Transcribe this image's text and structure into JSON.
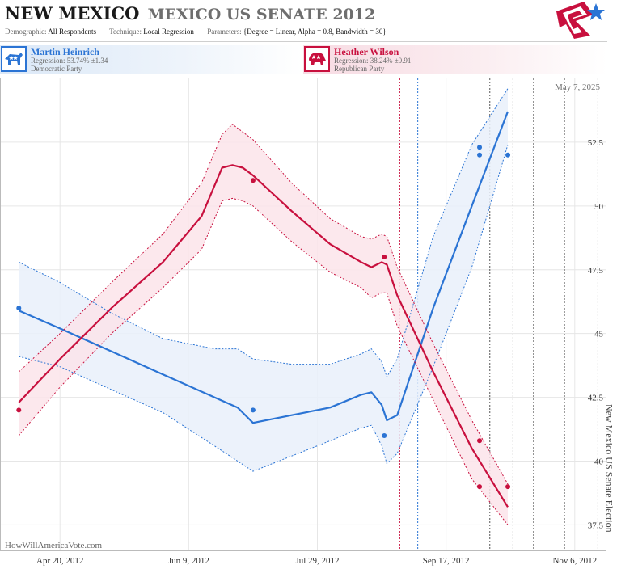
{
  "header": {
    "state": "NEW MEXICO",
    "race": "MEXICO US SENATE 2012",
    "demographic_key": "Demographic:",
    "demographic_val": "All Respondents",
    "technique_key": "Technique:",
    "technique_val": "Local Regression",
    "params_key": "Parameters:",
    "params_val": "{Degree = Linear, Alpha = 0.8, Bandwidth = 30}"
  },
  "candidates": {
    "dem": {
      "name": "Martin Heinrich",
      "regression": "Regression: 53.74% ±1.34",
      "party": "Democratic Party"
    },
    "rep": {
      "name": "Heather Wilson",
      "regression": "Regression: 38.24% ±0.91",
      "party": "Republican Party"
    }
  },
  "colors": {
    "dem": "#2b74d4",
    "rep": "#c8103e",
    "dem_band": "#e9f0fa",
    "rep_band": "#fbe4ea",
    "grid": "#e6e6e6"
  },
  "icons": {
    "dem_badge": "donkey-icon",
    "rep_badge": "elephant-icon",
    "logo": "star-flag-icon"
  },
  "chart_data": {
    "type": "line",
    "date_stamp": "May 7, 2025",
    "watermark": "HowWillAmericaVote.com",
    "election_label": "New Mexico US Senate Election",
    "x_ticks": [
      "Apr 20, 2012",
      "Jun 9, 2012",
      "Jul 29, 2012",
      "Sep 17, 2012",
      "Nov 6, 2012"
    ],
    "y_ticks": [
      "37.5",
      "40",
      "42.5",
      "45",
      "47.5",
      "50",
      "52.5"
    ],
    "ylim": [
      36.5,
      55
    ],
    "xlim_days_note": "",
    "x_tick_days": [
      0,
      50,
      100,
      150,
      200
    ],
    "xlim": [
      -23,
      212
    ],
    "grid": true,
    "series": [
      {
        "name": "Martin Heinrich",
        "party": "dem",
        "points": [
          [
            -16,
            46.0
          ],
          [
            75,
            42.0
          ],
          [
            126,
            41.0
          ],
          [
            163,
            52.3
          ],
          [
            163,
            52.0
          ],
          [
            174,
            52.0
          ]
        ],
        "trend_x": [
          -16,
          0,
          20,
          40,
          60,
          69,
          75,
          90,
          105,
          117,
          121,
          125,
          127,
          131,
          145,
          160,
          174
        ],
        "trend_y": [
          45.9,
          45.2,
          44.3,
          43.4,
          42.5,
          42.1,
          41.5,
          41.8,
          42.1,
          42.6,
          42.7,
          42.2,
          41.6,
          41.8,
          46.0,
          50.0,
          53.7
        ],
        "upper_y": [
          47.8,
          47.0,
          45.8,
          44.8,
          44.4,
          44.4,
          44.0,
          43.8,
          43.8,
          44.2,
          44.4,
          43.9,
          43.3,
          44.0,
          48.8,
          52.4,
          54.6
        ],
        "lower_y": [
          44.1,
          43.7,
          42.8,
          41.9,
          40.6,
          40.0,
          39.6,
          40.2,
          40.8,
          41.3,
          41.4,
          40.6,
          39.9,
          40.3,
          43.7,
          47.6,
          52.4
        ]
      },
      {
        "name": "Heather Wilson",
        "party": "rep",
        "points": [
          [
            -16,
            42.0
          ],
          [
            75,
            51.0
          ],
          [
            126,
            48.0
          ],
          [
            163,
            40.8
          ],
          [
            163,
            39.0
          ],
          [
            174,
            39.0
          ]
        ],
        "trend_x": [
          -16,
          0,
          20,
          40,
          55,
          63,
          67,
          71,
          75,
          90,
          105,
          117,
          121,
          125,
          127,
          131,
          145,
          160,
          174
        ],
        "trend_y": [
          42.3,
          44.0,
          46.0,
          47.8,
          49.6,
          51.5,
          51.6,
          51.5,
          51.2,
          49.8,
          48.5,
          47.8,
          47.6,
          47.8,
          47.7,
          46.5,
          43.5,
          40.5,
          38.2
        ],
        "upper_y": [
          43.5,
          45.0,
          47.0,
          48.9,
          50.9,
          52.8,
          53.2,
          52.9,
          52.6,
          50.9,
          49.5,
          48.8,
          48.7,
          48.9,
          48.8,
          47.6,
          44.6,
          41.6,
          39.1
        ],
        "lower_y": [
          41.0,
          42.9,
          45.0,
          46.8,
          48.3,
          50.2,
          50.3,
          50.2,
          50.0,
          48.6,
          47.4,
          46.8,
          46.4,
          46.6,
          46.6,
          45.3,
          42.4,
          39.3,
          37.5
        ]
      }
    ],
    "event_lines": [
      {
        "day": 132,
        "color": "rep",
        "style": "dashed"
      },
      {
        "day": 139,
        "color": "dem",
        "style": "dashed"
      },
      {
        "day": 167,
        "color": "neutral",
        "style": "dashed"
      },
      {
        "day": 176,
        "color": "neutral",
        "style": "dashed"
      },
      {
        "day": 184,
        "color": "neutral",
        "style": "dashed"
      },
      {
        "day": 196,
        "color": "neutral",
        "style": "dashed"
      },
      {
        "day": 209,
        "color": "neutral",
        "style": "dashed"
      }
    ]
  }
}
